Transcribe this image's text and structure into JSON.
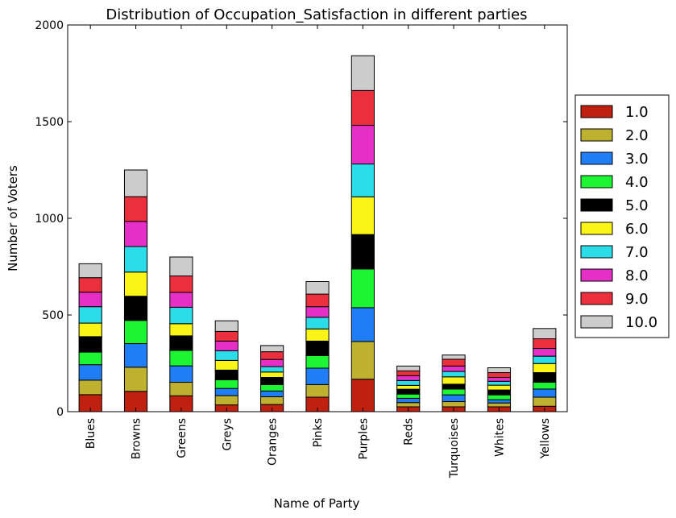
{
  "chart_data": {
    "type": "bar",
    "stacked": true,
    "title": "Distribution of Occupation_Satisfaction in different parties",
    "xlabel": "Name of Party",
    "ylabel": "Number of Voters",
    "ylim": [
      0,
      2000
    ],
    "yticks": [
      0,
      500,
      1000,
      1500,
      2000
    ],
    "legend_position": "right-outside",
    "grid": false,
    "categories": [
      "Blues",
      "Browns",
      "Greens",
      "Greys",
      "Oranges",
      "Pinks",
      "Purples",
      "Reds",
      "Turquoises",
      "Whites",
      "Yellows"
    ],
    "series": [
      {
        "name": "1.0",
        "color": "#bf200f",
        "values": [
          88,
          105,
          82,
          35,
          37,
          75,
          168,
          25,
          25,
          25,
          28
        ]
      },
      {
        "name": "2.0",
        "color": "#bdb12f",
        "values": [
          75,
          125,
          70,
          48,
          40,
          65,
          195,
          22,
          27,
          20,
          47
        ]
      },
      {
        "name": "3.0",
        "color": "#1f7ef5",
        "values": [
          80,
          122,
          85,
          37,
          30,
          85,
          175,
          22,
          35,
          17,
          42
        ]
      },
      {
        "name": "4.0",
        "color": "#1cf532",
        "values": [
          65,
          120,
          80,
          45,
          33,
          65,
          200,
          22,
          30,
          25,
          35
        ]
      },
      {
        "name": "5.0",
        "color": "#000000",
        "values": [
          80,
          125,
          75,
          50,
          37,
          75,
          178,
          25,
          25,
          25,
          50
        ]
      },
      {
        "name": "6.0",
        "color": "#faf516",
        "values": [
          70,
          125,
          63,
          50,
          28,
          63,
          195,
          20,
          38,
          25,
          47
        ]
      },
      {
        "name": "7.0",
        "color": "#2bdde9",
        "values": [
          85,
          132,
          85,
          50,
          28,
          60,
          170,
          25,
          28,
          20,
          38
        ]
      },
      {
        "name": "8.0",
        "color": "#e62fc6",
        "values": [
          75,
          130,
          77,
          50,
          37,
          55,
          200,
          25,
          28,
          20,
          40
        ]
      },
      {
        "name": "9.0",
        "color": "#ec2f3c",
        "values": [
          75,
          128,
          85,
          50,
          40,
          65,
          180,
          25,
          35,
          25,
          50
        ]
      },
      {
        "name": "10.0",
        "color": "#cccccc",
        "values": [
          72,
          138,
          98,
          55,
          32,
          65,
          180,
          25,
          22,
          25,
          53
        ]
      }
    ]
  }
}
